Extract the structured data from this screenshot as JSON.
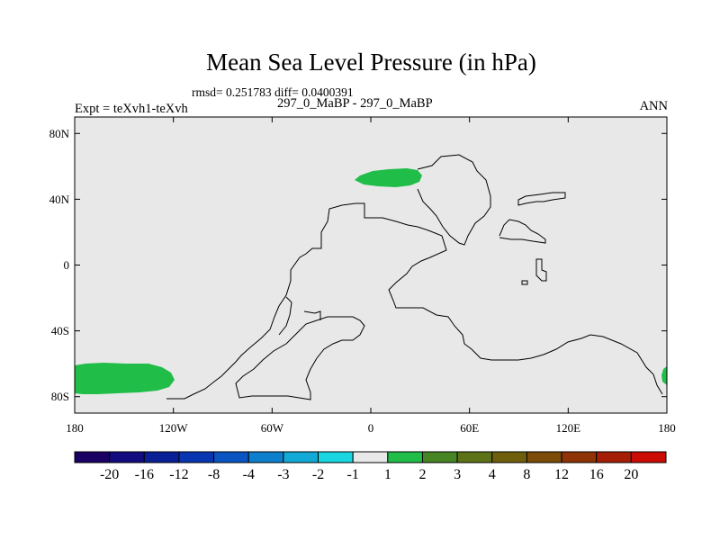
{
  "title": "Mean Sea Level Pressure (in hPa)",
  "stats": "rmsd= 0.251783 diff= 0.0400391",
  "subtitle": "297_0_MaBP - 297_0_MaBP",
  "experiment": "Expt = teXvh1-teXvh",
  "season": "ANN",
  "axes": {
    "y_ticks": [
      {
        "value": 80,
        "label": "80N"
      },
      {
        "value": 40,
        "label": "40N"
      },
      {
        "value": 0,
        "label": "0"
      },
      {
        "value": -40,
        "label": "40S"
      },
      {
        "value": -80,
        "label": "80S"
      }
    ],
    "x_ticks": [
      {
        "value": -180,
        "label": "180"
      },
      {
        "value": -120,
        "label": "120W"
      },
      {
        "value": -60,
        "label": "60W"
      },
      {
        "value": 0,
        "label": "0"
      },
      {
        "value": 60,
        "label": "60E"
      },
      {
        "value": 120,
        "label": "120E"
      },
      {
        "value": 180,
        "label": "180"
      }
    ],
    "lon_range": [
      -180,
      180
    ],
    "lat_range": [
      -90,
      90
    ]
  },
  "colorbar": {
    "colors": [
      "#1a0062",
      "#120c80",
      "#0a1e96",
      "#0836b0",
      "#0a55c2",
      "#0d7fcc",
      "#12a9d6",
      "#1ad6e0",
      "#e8e8e8",
      "#20bd48",
      "#468424",
      "#5d7216",
      "#6f5f0c",
      "#7d4b08",
      "#8e3406",
      "#a51f06",
      "#cc0b04"
    ],
    "labels": [
      "-20",
      "-16",
      "-12",
      "-8",
      "-4",
      "-3",
      "-2",
      "-1",
      "1",
      "2",
      "3",
      "4",
      "8",
      "12",
      "16",
      "20"
    ]
  },
  "colors": {
    "background": "#e8e8e8",
    "positive_fill": "#20bd48",
    "coast": "#000000"
  }
}
